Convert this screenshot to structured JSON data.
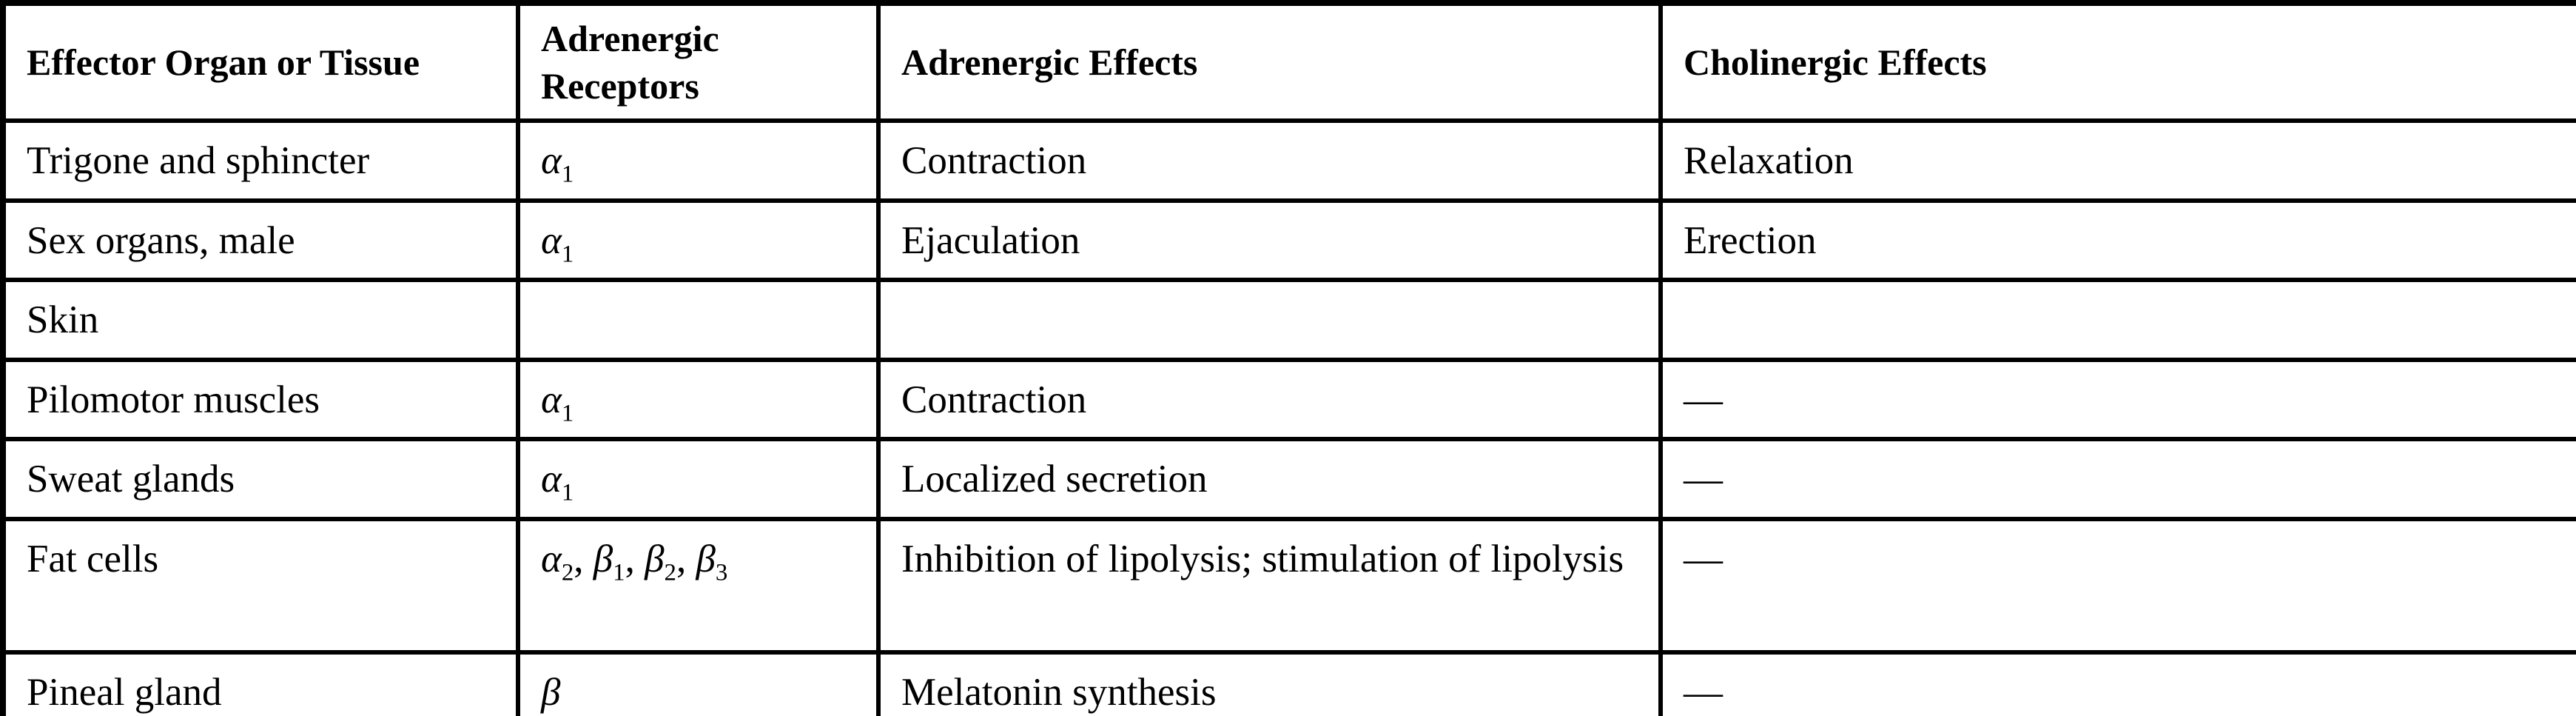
{
  "colors": {
    "text": "#000000",
    "border": "#000000",
    "background": "#ffffff"
  },
  "table": {
    "headers": [
      "Effector Organ or Tissue",
      "Adrenergic Receptors",
      "Adrenergic Effects",
      "Cholinergic Effects"
    ],
    "rows": [
      {
        "organ": "Trigone and sphincter",
        "receptors": [
          {
            "base": "α",
            "sub": "1"
          }
        ],
        "adrenergic": "Contraction",
        "cholinergic": "Relaxation"
      },
      {
        "organ": "Sex organs, male",
        "receptors": [
          {
            "base": "α",
            "sub": "1"
          }
        ],
        "adrenergic": "Ejaculation",
        "cholinergic": "Erection"
      },
      {
        "organ": "Skin",
        "receptors": [],
        "adrenergic": "",
        "cholinergic": ""
      },
      {
        "organ": "Pilomotor muscles",
        "receptors": [
          {
            "base": "α",
            "sub": "1"
          }
        ],
        "adrenergic": "Contraction",
        "cholinergic": "—"
      },
      {
        "organ": "Sweat glands",
        "receptors": [
          {
            "base": "α",
            "sub": "1"
          }
        ],
        "adrenergic": "Localized secretion",
        "cholinergic": "—"
      },
      {
        "organ": "Fat cells",
        "receptors": [
          {
            "base": "α",
            "sub": "2"
          },
          {
            "base": "β",
            "sub": "1"
          },
          {
            "base": "β",
            "sub": "2"
          },
          {
            "base": "β",
            "sub": "3"
          }
        ],
        "adrenergic": "Inhibition of lipolysis; stimulation of lipolysis",
        "cholinergic": "—"
      },
      {
        "organ": "Pineal gland",
        "receptors": [
          {
            "base": "β",
            "sub": ""
          }
        ],
        "adrenergic": "Melatonin synthesis",
        "cholinergic": "—"
      }
    ]
  }
}
